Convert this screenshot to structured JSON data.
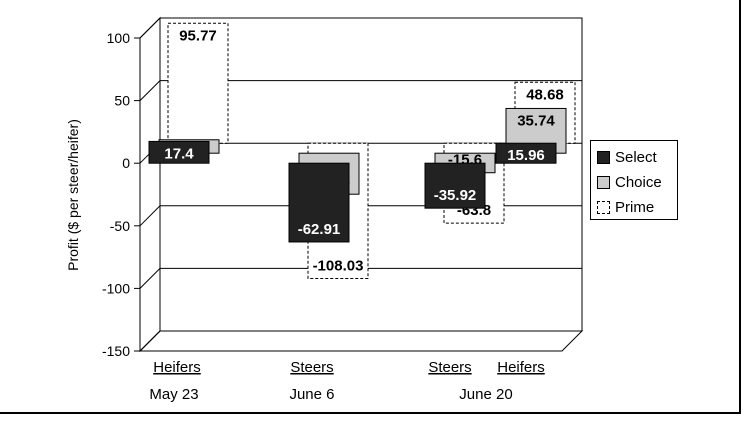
{
  "chart_data": {
    "type": "bar",
    "ylabel": "Profit ($ per steer/heifer)",
    "ylim": [
      -150,
      100
    ],
    "yticks": [
      100,
      50,
      0,
      -50,
      -100,
      -150
    ],
    "groups": [
      {
        "label": "Heifers",
        "date": "May 23"
      },
      {
        "label": "Steers",
        "date": "June 6"
      },
      {
        "label": "Steers",
        "date": "June 20"
      },
      {
        "label": "Heifers",
        "date": ""
      }
    ],
    "date_labels": [
      "May 23",
      "June 6",
      "June 20"
    ],
    "series": [
      {
        "name": "Select",
        "color": "#222222",
        "values": [
          17.4,
          -62.91,
          -35.92,
          15.96
        ]
      },
      {
        "name": "Choice",
        "color": "#cccccc",
        "values": [
          10.72,
          -32.76,
          -15.6,
          35.74
        ]
      },
      {
        "name": "Prime",
        "color": "#ffffff",
        "values": [
          95.77,
          -108.03,
          -63.8,
          48.68
        ]
      }
    ],
    "data_labels": [
      [
        "17.4",
        "-62.91",
        "-35.92",
        "15.96"
      ],
      [
        "10.72",
        "-32.76",
        "-15.6",
        "35.74"
      ],
      [
        "95.77",
        "-108.03",
        "-63.8",
        "48.68"
      ]
    ],
    "legend_position": "right",
    "grid": true
  }
}
